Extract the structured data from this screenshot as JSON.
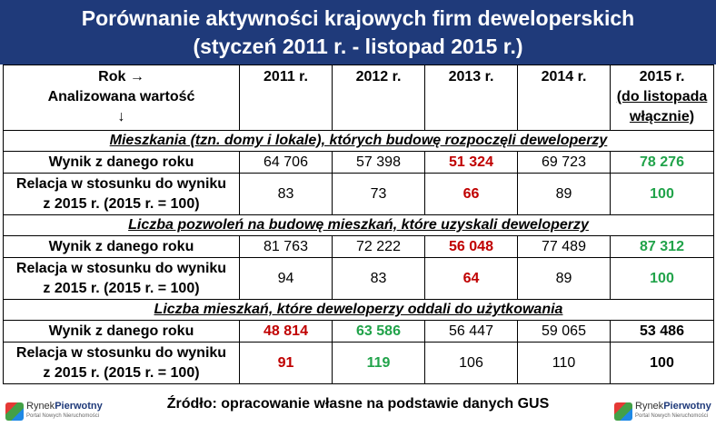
{
  "title": {
    "line1": "Porównanie aktywności krajowych firm deweloperskich",
    "line2": "(styczeń 2011 r. - listopad 2015 r.)"
  },
  "header": {
    "corner_line1": "Rok →",
    "corner_line2": "Analizowana wartość",
    "corner_line3": "↓",
    "years": [
      "2011 r.",
      "2012 r.",
      "2013 r.",
      "2014 r."
    ],
    "last_year_line1": "2015 r.",
    "last_year_line2": "(do listopada",
    "last_year_line3": "włącznie)"
  },
  "labels": {
    "result": "Wynik z danego roku",
    "relation_line1": "Relacja w stosunku do wyniku",
    "relation_line2": "z 2015 r. (2015 r. = 100)"
  },
  "sections": [
    {
      "title": "Mieszkania (tzn. domy i lokale), których budowę rozpoczęli deweloperzy",
      "result": [
        "64 706",
        "57 398",
        "51 324",
        "69 723",
        "78 276"
      ],
      "relation": [
        "83",
        "73",
        "66",
        "89",
        "100"
      ]
    },
    {
      "title": "Liczba pozwoleń na budowę mieszkań, które uzyskali deweloperzy",
      "result": [
        "81 763",
        "72 222",
        "56 048",
        "77 489",
        "87 312"
      ],
      "relation": [
        "94",
        "83",
        "64",
        "89",
        "100"
      ]
    },
    {
      "title": "Liczba mieszkań, które deweloperzy oddali do użytkowania",
      "result": [
        "48 814",
        "63 586",
        "56 447",
        "59 065",
        "53 486"
      ],
      "relation": [
        "91",
        "119",
        "106",
        "110",
        "100"
      ]
    }
  ],
  "source": "Źródło: opracowanie własne na podstawie danych GUS",
  "logo": {
    "name_a": "Rynek",
    "name_b": "Pierwotny",
    "tagline": "Portal Nowych Nieruchomości"
  },
  "colors": {
    "header_bg": "#1f3a7a",
    "lowest": "#c00000",
    "highest": "#21a34a"
  }
}
